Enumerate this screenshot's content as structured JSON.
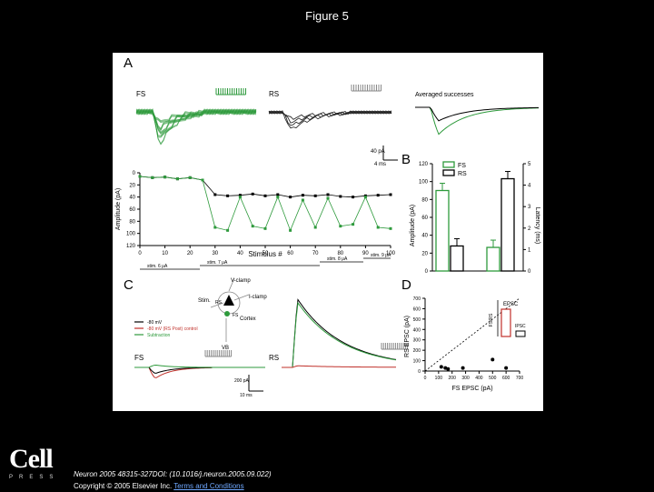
{
  "page_title": "Figure 5",
  "panels": {
    "A": {
      "letter": "A",
      "trace_labels": [
        "FS",
        "RS",
        "Averaged successes"
      ],
      "scale_bar": [
        "40 pA",
        "4 ms"
      ]
    },
    "A_plot": {
      "ylabel": "Amplitude (pA)",
      "xlabel": "Stimulus #",
      "y_ticks": [
        "0",
        "20",
        "40",
        "60",
        "80",
        "100",
        "120"
      ],
      "x_ticks": [
        "0",
        "10",
        "20",
        "30",
        "40",
        "50",
        "60",
        "70",
        "80",
        "90",
        "100"
      ],
      "stim_labels": [
        "stim. 6 μA",
        "stim. 7 μA",
        "stim. 8 μA",
        "stim. 9 μA"
      ]
    },
    "B": {
      "letter": "B",
      "legend": [
        "FS",
        "RS"
      ],
      "ylabel_left": "Amplitude (pA)",
      "ylabel_right": "Latency (ms)",
      "left_ticks": [
        "0",
        "20",
        "40",
        "60",
        "80",
        "100",
        "120"
      ],
      "right_ticks": [
        "0",
        "1",
        "2",
        "3",
        "4",
        "5"
      ]
    },
    "C": {
      "letter": "C",
      "schematic_labels": [
        "V-clamp",
        "I-clamp",
        "Stim.",
        "RS",
        "FS",
        "Cortex",
        "VB"
      ],
      "legend": [
        "-80 mV",
        "-80 mV (RS Post) control",
        "Subtraction"
      ],
      "trace_labels": [
        "FS",
        "RS"
      ],
      "scale_bar": [
        "200 pA",
        "10 ms"
      ]
    },
    "D": {
      "letter": "D",
      "ylabel": "RS EPSC (pA)",
      "xlabel": "FS EPSC (pA)",
      "ticks": [
        "0",
        "100",
        "200",
        "300",
        "400",
        "500",
        "600",
        "700"
      ],
      "inset_title": "EPSC",
      "inset_ylabel": "FS/RS",
      "inset_label": "IPSC"
    }
  },
  "chart_data": [
    {
      "type": "scatter",
      "xlabel": "Stimulus #",
      "ylabel": "Amplitude (pA)",
      "ylim": [
        0,
        120
      ],
      "xlim": [
        0,
        100
      ],
      "y_inverted": true,
      "series": [
        {
          "color": "#000000",
          "x": [
            0,
            5,
            10,
            15,
            20,
            25,
            30,
            35,
            40,
            45,
            50,
            55,
            60,
            65,
            70,
            75,
            80,
            85,
            90,
            95,
            100
          ],
          "y": [
            6,
            8,
            7,
            10,
            8,
            12,
            36,
            38,
            37,
            35,
            38,
            36,
            40,
            37,
            38,
            36,
            39,
            40,
            38,
            37,
            36
          ]
        },
        {
          "color": "#2e9a3c",
          "x": [
            0,
            5,
            10,
            15,
            20,
            25,
            30,
            35,
            40,
            45,
            50,
            55,
            60,
            65,
            70,
            75,
            80,
            85,
            90,
            95,
            100
          ],
          "y": [
            6,
            8,
            7,
            10,
            8,
            12,
            90,
            95,
            40,
            88,
            92,
            40,
            95,
            45,
            90,
            42,
            88,
            85,
            40,
            90,
            92
          ]
        }
      ]
    },
    {
      "type": "bar",
      "categories": [
        "Amplitude",
        "Latency"
      ],
      "series": [
        {
          "name": "FS",
          "color": "#2e9a3c",
          "values": [
            90,
            1.1
          ]
        },
        {
          "name": "RS",
          "color": "#000000",
          "values": [
            28,
            4.3
          ]
        }
      ],
      "ylabel": "Amplitude (pA)",
      "ylabel_right": "Latency (ms)",
      "ylim": [
        0,
        120
      ],
      "ylim_right": [
        0,
        5
      ]
    },
    {
      "type": "scatter",
      "xlabel": "FS EPSC (pA)",
      "ylabel": "RS EPSC (pA)",
      "xlim": [
        0,
        700
      ],
      "ylim": [
        0,
        700
      ],
      "x": [
        120,
        150,
        170,
        280,
        500,
        600
      ],
      "y": [
        40,
        30,
        20,
        30,
        110,
        30
      ]
    }
  ],
  "footer": {
    "logo_word": "Cell",
    "logo_sub": "PRESS",
    "citation": "Neuron 2005 48315-327DOI: (10.1016/j.neuron.2005.09.022)",
    "copyright": "Copyright © 2005 Elsevier Inc.",
    "terms_link": "Terms and Conditions"
  }
}
